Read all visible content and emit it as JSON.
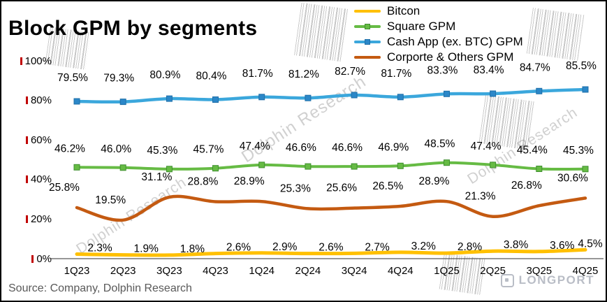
{
  "title": "Block GPM by segments",
  "source_note": "Source: Company, Dolphin Research",
  "watermarks": {
    "brand_text": "Dolphin Research",
    "logo_text": "LONGPORT"
  },
  "chart_data": {
    "type": "line",
    "title": "Block GPM by segments",
    "categories": [
      "1Q23",
      "2Q23",
      "3Q23",
      "4Q23",
      "1Q24",
      "2Q24",
      "3Q24",
      "4Q24",
      "1Q25",
      "2Q25",
      "3Q25",
      "4Q25"
    ],
    "y_axis": {
      "range": [
        0,
        100
      ],
      "ticks": [
        0,
        20,
        40,
        60,
        80,
        100
      ],
      "tick_labels": [
        "0%",
        "20%",
        "40%",
        "60%",
        "80%",
        "100%"
      ],
      "tick_mark_color": "#C00000"
    },
    "grid": false,
    "legend_position": "top-right",
    "series": [
      {
        "name": "Bitcon",
        "color": "#FFC000",
        "marker": "none",
        "values": [
          2.3,
          1.9,
          1.8,
          2.6,
          2.9,
          2.6,
          2.7,
          3.2,
          2.8,
          3.8,
          3.6,
          4.5
        ],
        "labels": [
          "2.3%",
          "1.9%",
          "1.8%",
          "2.6%",
          "2.9%",
          "2.6%",
          "2.7%",
          "3.2%",
          "2.8%",
          "3.8%",
          "3.6%",
          "4.5%"
        ]
      },
      {
        "name": "Square GPM",
        "color": "#66BB44",
        "marker": "square",
        "marker_color": "#66BB44",
        "marker_border": "#3F8F2F",
        "values": [
          46.2,
          46.0,
          45.3,
          45.7,
          47.4,
          46.6,
          46.6,
          46.9,
          48.5,
          47.4,
          45.4,
          45.3
        ],
        "labels": [
          "46.2%",
          "46.0%",
          "45.3%",
          "45.7%",
          "47.4%",
          "46.6%",
          "46.6%",
          "46.9%",
          "48.5%",
          "47.4%",
          "45.4%",
          "45.3%"
        ]
      },
      {
        "name": "Cash App (ex. BTC) GPM",
        "color": "#3BA7DC",
        "marker": "square",
        "marker_color": "#2B87C8",
        "marker_border": "#1F6FA8",
        "values": [
          79.5,
          79.3,
          80.9,
          80.4,
          81.7,
          81.2,
          82.7,
          81.7,
          83.3,
          83.4,
          84.7,
          85.5
        ],
        "labels": [
          "79.5%",
          "79.3%",
          "80.9%",
          "80.4%",
          "81.7%",
          "81.2%",
          "82.7%",
          "81.7%",
          "83.3%",
          "83.4%",
          "84.7%",
          "85.5%"
        ]
      },
      {
        "name": "Corporte & Others GPM",
        "color": "#C45A11",
        "marker": "none",
        "values": [
          25.8,
          19.5,
          31.1,
          28.8,
          28.9,
          25.3,
          25.6,
          26.5,
          28.9,
          21.3,
          26.8,
          30.6
        ],
        "labels": [
          "25.8%",
          "19.5%",
          "31.1%",
          "28.8%",
          "28.9%",
          "25.3%",
          "25.6%",
          "26.5%",
          "28.9%",
          "21.3%",
          "26.8%",
          "30.6%"
        ]
      }
    ]
  }
}
